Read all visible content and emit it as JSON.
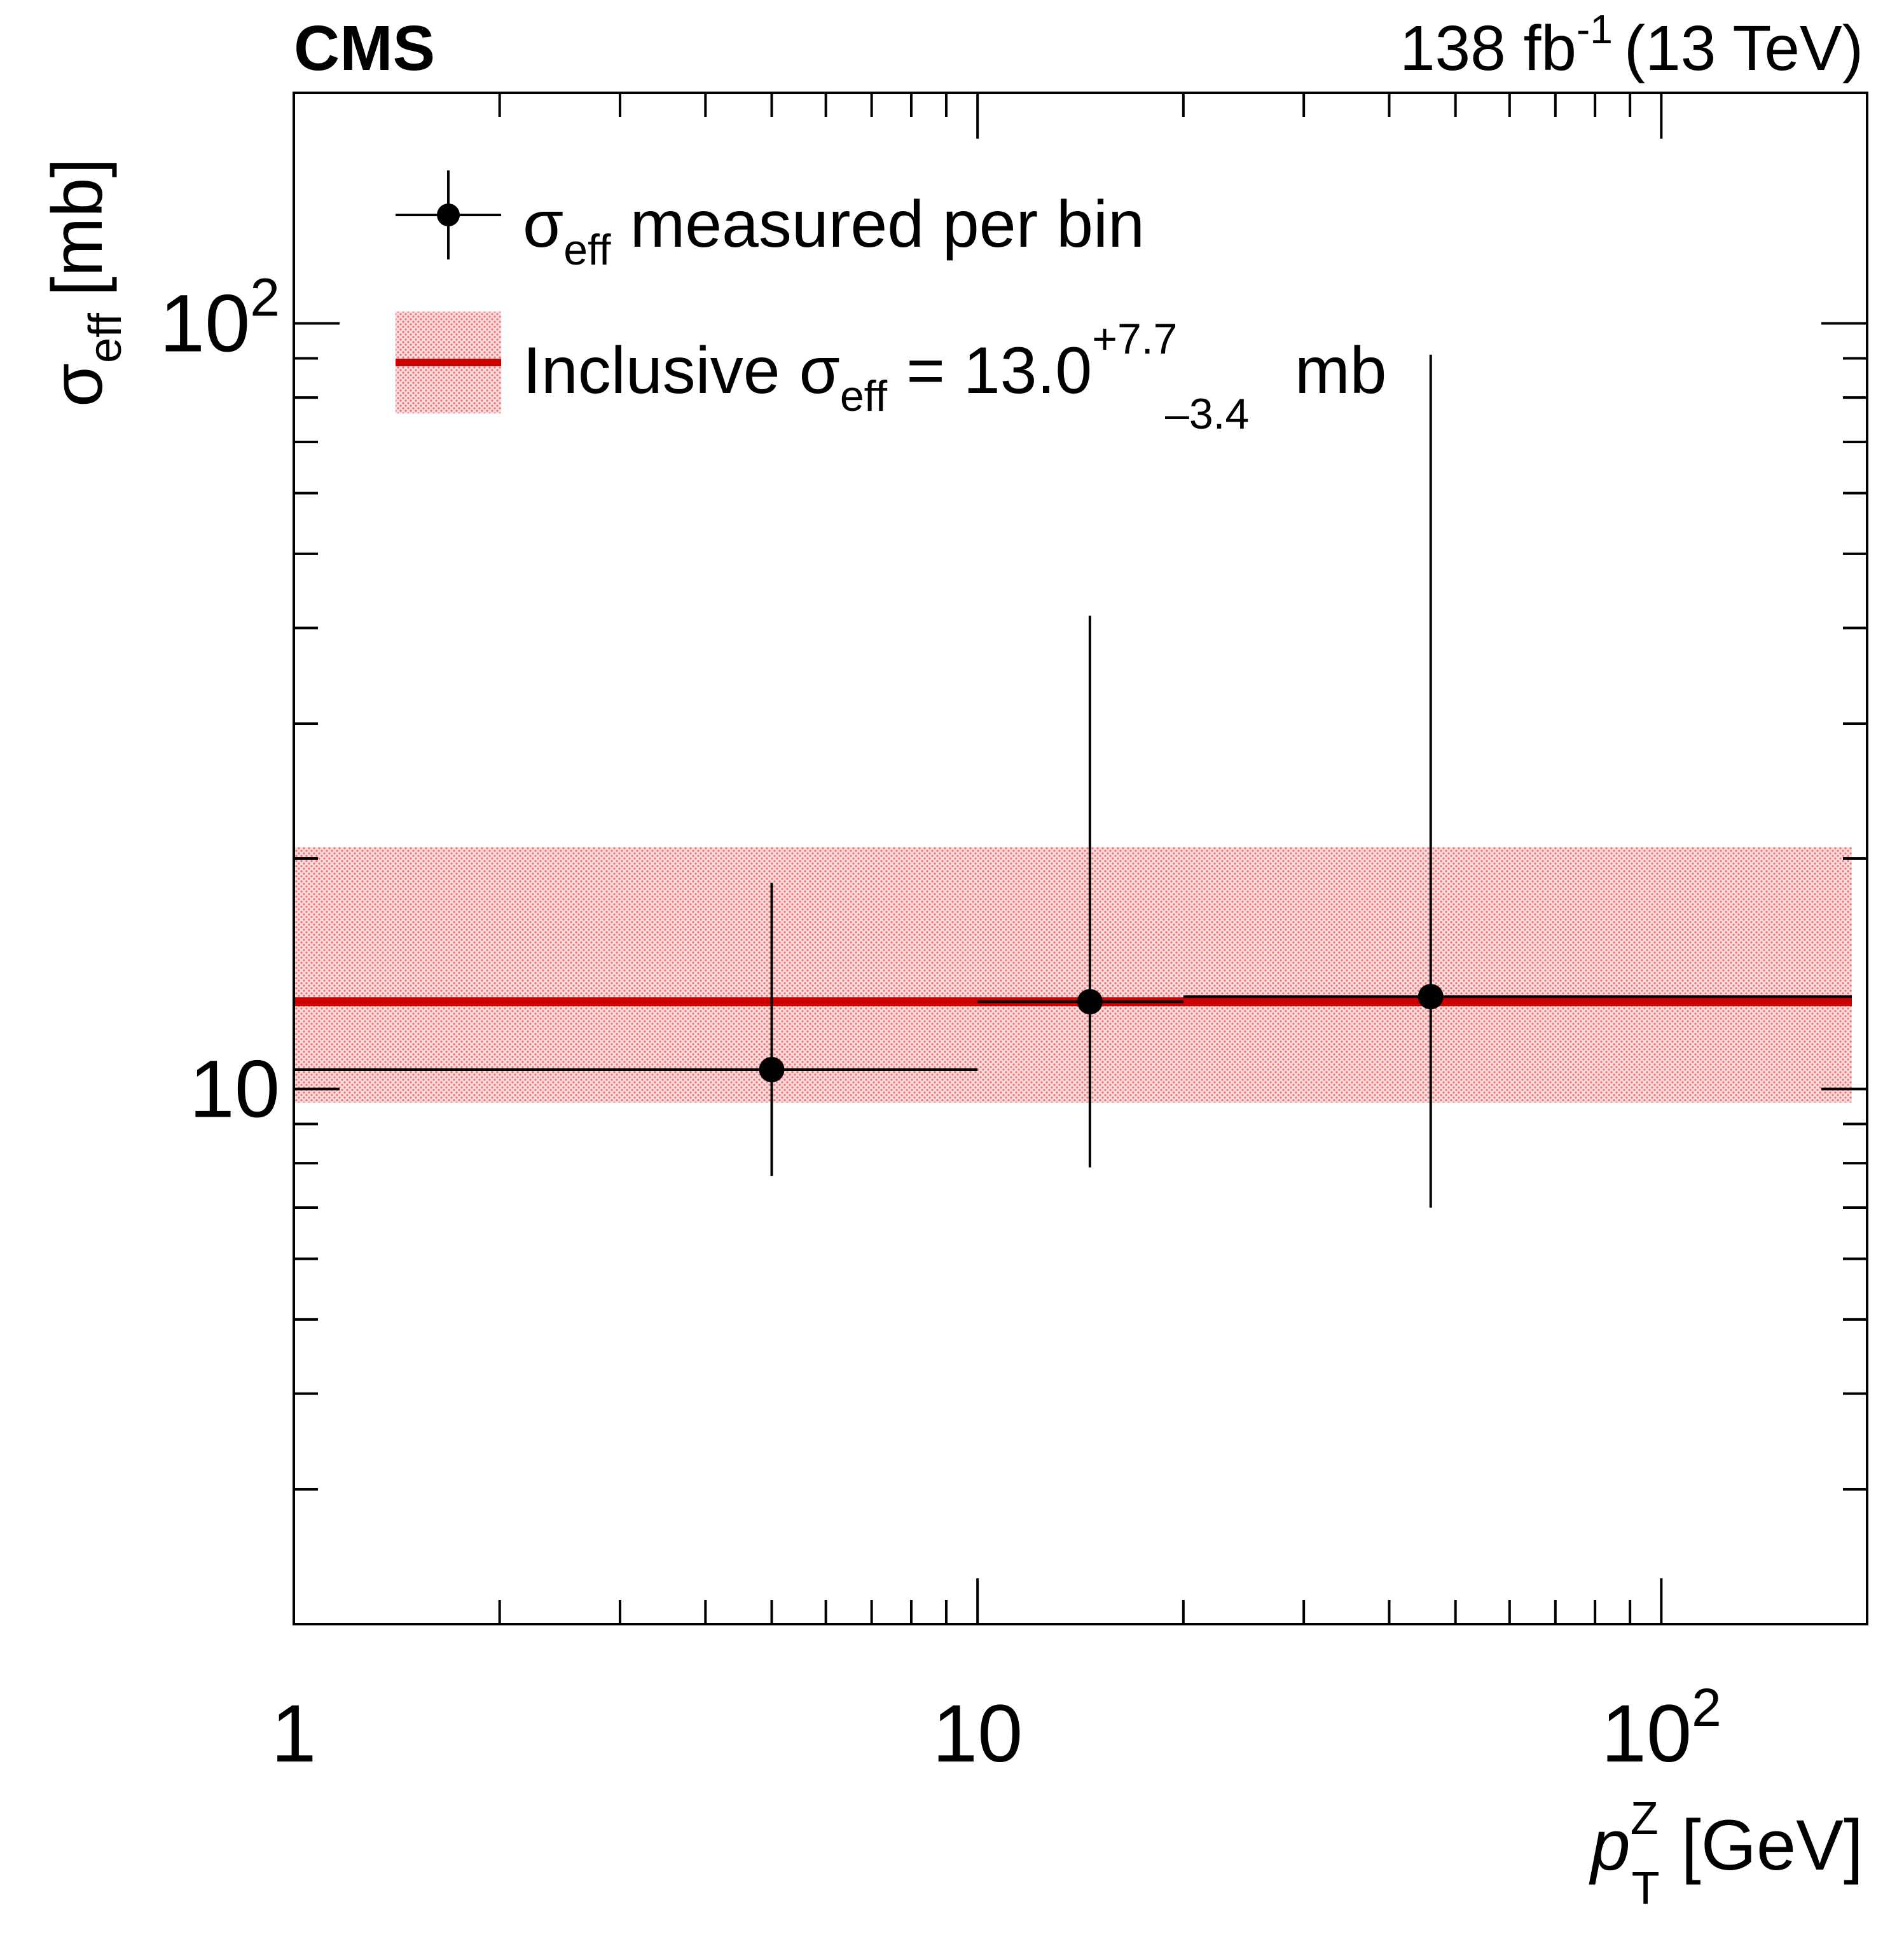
{
  "header": {
    "experiment": "CMS",
    "lumi_value": "138 fb",
    "lumi_exp": "-1",
    "energy": "(13 TeV)"
  },
  "chart_data": {
    "type": "scatter",
    "title": "",
    "xscale": "log",
    "yscale": "log",
    "xlim": [
      1,
      200
    ],
    "ylim": [
      2,
      200
    ],
    "x_ticks": [
      {
        "value": 1,
        "base": "1",
        "exp": ""
      },
      {
        "value": 10,
        "base": "10",
        "exp": ""
      },
      {
        "value": 100,
        "base": "10",
        "exp": "2"
      }
    ],
    "y_ticks": [
      {
        "value": 10,
        "base": "10",
        "exp": ""
      },
      {
        "value": 100,
        "base": "10",
        "exp": "2"
      }
    ],
    "xlabel": {
      "symbol": "p",
      "sup": "Z",
      "sub": "T",
      "unit": "[GeV]"
    },
    "ylabel": {
      "symbol": "σ",
      "sub": "eff",
      "unit": "[mb]"
    },
    "series": [
      {
        "name": "σ_eff measured per bin",
        "color": "#000000",
        "points": [
          {
            "x": 5.0,
            "x_low": 1,
            "x_high": 10,
            "y": 10.6,
            "y_low": 7.7,
            "y_high": 18.6
          },
          {
            "x": 14.6,
            "x_low": 10,
            "x_high": 20,
            "y": 13.0,
            "y_low": 7.9,
            "y_high": 41.5
          },
          {
            "x": 46.0,
            "x_low": 20,
            "x_high": 190,
            "y": 13.2,
            "y_low": 7.0,
            "y_high": 91.0
          }
        ]
      }
    ],
    "band": {
      "name": "Inclusive σ_eff",
      "central": 13.0,
      "plus": 7.7,
      "minus": 3.4,
      "x_range": [
        1,
        190
      ],
      "line_color": "#cc0000",
      "fill_color": "#f6b0b0"
    },
    "legend": {
      "position": "top-left",
      "entry1": {
        "symbol": "σ",
        "sub": "eff",
        "text": "measured per bin"
      },
      "entry2": {
        "prefix": "Inclusive",
        "symbol": "σ",
        "sub": "eff",
        "eq": "= 13.0",
        "up": "+7.7",
        "down": "–3.4",
        "unit": "mb"
      }
    }
  }
}
